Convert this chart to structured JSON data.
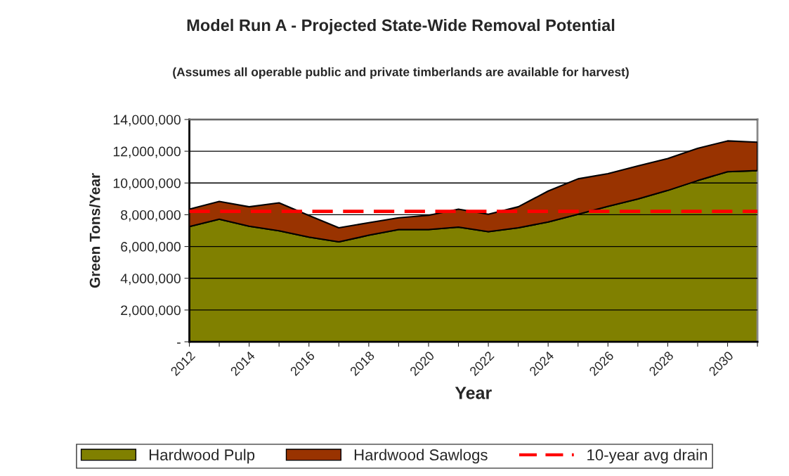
{
  "chart_data": {
    "type": "area",
    "title": "Model Run A - Projected State-Wide Removal Potential",
    "subtitle": "(Assumes all operable public and private timberlands are available for harvest)",
    "xlabel": "Year",
    "ylabel": "Green Tons/Year",
    "categories": [
      "2012",
      null,
      "2014",
      null,
      "2016",
      null,
      "2018",
      null,
      "2020",
      null,
      "2022",
      null,
      "2024",
      null,
      "2026",
      null,
      "2028",
      null,
      "2030",
      null
    ],
    "stacked": true,
    "series": [
      {
        "name": "Hardwood Pulp",
        "color": "#808000",
        "values": [
          7250000,
          7720000,
          7280000,
          6990000,
          6590000,
          6290000,
          6710000,
          7070000,
          7070000,
          7220000,
          6930000,
          7180000,
          7540000,
          8030000,
          8530000,
          8990000,
          9530000,
          10150000,
          10710000,
          10780000
        ]
      },
      {
        "name": "Hardwood Sawlogs",
        "color": "#993300",
        "values": [
          1100000,
          1120000,
          1220000,
          1760000,
          1360000,
          890000,
          790000,
          740000,
          890000,
          1130000,
          1100000,
          1320000,
          1950000,
          2230000,
          2060000,
          2080000,
          2010000,
          2030000,
          1940000,
          1790000
        ]
      },
      {
        "name": "10-year avg drain",
        "type": "line",
        "color": "#ff0000",
        "line_style": "dashed",
        "values": [
          8210000,
          8210000,
          8210000,
          8210000,
          8210000,
          8210000,
          8210000,
          8210000,
          8210000,
          8210000,
          8210000,
          8210000,
          8210000,
          8210000,
          8210000,
          8210000,
          8210000,
          8210000,
          8210000,
          8210000
        ]
      }
    ],
    "ylim": [
      0,
      14000000
    ],
    "yticks": [
      {
        "value": 0,
        "label": "-"
      },
      {
        "value": 2000000,
        "label": "2,000,000"
      },
      {
        "value": 4000000,
        "label": "4,000,000"
      },
      {
        "value": 6000000,
        "label": "6,000,000"
      },
      {
        "value": 8000000,
        "label": "8,000,000"
      },
      {
        "value": 10000000,
        "label": "10,000,000"
      },
      {
        "value": 12000000,
        "label": "12,000,000"
      },
      {
        "value": 14000000,
        "label": "14,000,000"
      }
    ],
    "grid": "y",
    "legend": "bottom"
  }
}
